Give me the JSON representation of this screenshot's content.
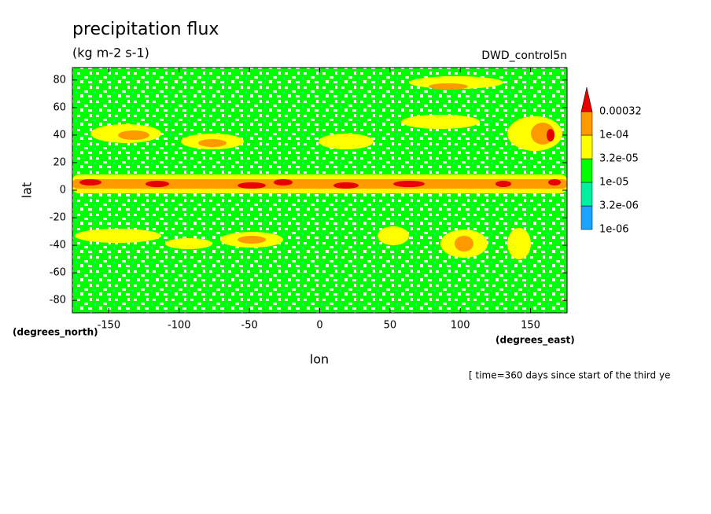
{
  "chart_data": {
    "type": "contour",
    "title": "precipitation flux",
    "units": "(kg m-2 s-1)",
    "dataset": "DWD_control5n",
    "x_label": "lon",
    "y_label": "lat",
    "x_units": "(degrees_east)",
    "y_units": "(degrees_north)",
    "footnote": "[ time=360 days since start of the third ye",
    "xlim": [
      -176,
      176
    ],
    "ylim": [
      -89,
      89
    ],
    "xticks": [
      -150,
      -100,
      -50,
      0,
      50,
      100,
      150
    ],
    "yticks": [
      -80,
      -60,
      -40,
      -20,
      0,
      20,
      40,
      60,
      80
    ],
    "colorbar": {
      "levels": [
        {
          "value": 1e-06,
          "label": "1e-06"
        },
        {
          "value": 3.2e-06,
          "label": "3.2e-06"
        },
        {
          "value": 1e-05,
          "label": "1e-05"
        },
        {
          "value": 3.2e-05,
          "label": "3.2e-05"
        },
        {
          "value": 0.0001,
          "label": "1e-04"
        },
        0.00032
      ],
      "colors": [
        "#1aa3ff",
        "#00f0a0",
        "#00ff00",
        "#ffff00",
        "#ff9900"
      ],
      "extend_color": "#e60000",
      "log_scale": true
    }
  }
}
